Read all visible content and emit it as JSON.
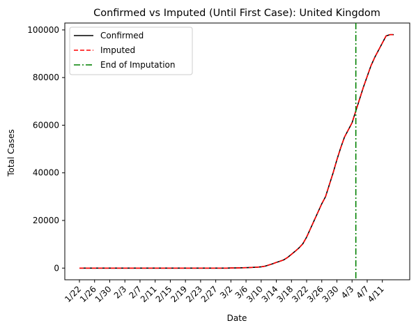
{
  "chart_data": {
    "type": "line",
    "title": "Confirmed vs Imputed (Until First Case): United Kingdom",
    "xlabel": "Date",
    "ylabel": "Total Cases",
    "x": [
      "1/22",
      "1/23",
      "1/24",
      "1/25",
      "1/26",
      "1/27",
      "1/28",
      "1/29",
      "1/30",
      "1/31",
      "2/1",
      "2/2",
      "2/3",
      "2/4",
      "2/5",
      "2/6",
      "2/7",
      "2/8",
      "2/9",
      "2/10",
      "2/11",
      "2/12",
      "2/13",
      "2/14",
      "2/15",
      "2/16",
      "2/17",
      "2/18",
      "2/19",
      "2/20",
      "2/21",
      "2/22",
      "2/23",
      "2/24",
      "2/25",
      "2/26",
      "2/27",
      "2/28",
      "2/29",
      "3/1",
      "3/2",
      "3/3",
      "3/4",
      "3/5",
      "3/6",
      "3/7",
      "3/8",
      "3/9",
      "3/10",
      "3/11",
      "3/12",
      "3/13",
      "3/14",
      "3/15",
      "3/16",
      "3/17",
      "3/18",
      "3/19",
      "3/20",
      "3/21",
      "3/22",
      "3/23",
      "3/24",
      "3/25",
      "3/26",
      "3/27",
      "3/28",
      "3/29",
      "3/30",
      "3/31",
      "4/1",
      "4/2",
      "4/3",
      "4/4",
      "4/5",
      "4/6",
      "4/7",
      "4/8",
      "4/9",
      "4/10",
      "4/11",
      "4/12",
      "4/13",
      "4/14"
    ],
    "xticks": [
      "1/22",
      "1/26",
      "1/30",
      "2/3",
      "2/7",
      "2/11",
      "2/15",
      "2/19",
      "2/23",
      "2/27",
      "3/2",
      "3/6",
      "3/10",
      "3/14",
      "3/18",
      "3/22",
      "3/26",
      "3/30",
      "4/3",
      "4/7",
      "4/11"
    ],
    "ylim": [
      -4900,
      102900
    ],
    "yticks": [
      0,
      20000,
      40000,
      60000,
      80000,
      100000
    ],
    "series": [
      {
        "name": "Confirmed",
        "color": "#000000",
        "style": "solid",
        "values": [
          0,
          0,
          0,
          0,
          0,
          0,
          0,
          0,
          0,
          0,
          0,
          0,
          0,
          0,
          0,
          0,
          0,
          0,
          0,
          0,
          0,
          0,
          0,
          0,
          0,
          0,
          0,
          0,
          0,
          0,
          0,
          0,
          0,
          0,
          0,
          0,
          0,
          0,
          0,
          0,
          50,
          60,
          90,
          120,
          180,
          250,
          320,
          400,
          550,
          800,
          1300,
          1800,
          2400,
          2900,
          3500,
          4500,
          5800,
          7100,
          8500,
          10200,
          13000,
          16500,
          20000,
          23500,
          27000,
          30000,
          35000,
          40000,
          45500,
          50500,
          55000,
          58000,
          61000,
          66000,
          71000,
          76000,
          80500,
          85000,
          88500,
          91500,
          94500,
          97500,
          98000,
          98000
        ]
      },
      {
        "name": "Imputed",
        "color": "#ff0000",
        "style": "dashed",
        "values": [
          0,
          0,
          0,
          0,
          0,
          0,
          0,
          0,
          0,
          0,
          0,
          0,
          0,
          0,
          0,
          0,
          0,
          0,
          0,
          0,
          0,
          0,
          0,
          0,
          0,
          0,
          0,
          0,
          0,
          0,
          0,
          0,
          0,
          0,
          0,
          0,
          0,
          0,
          0,
          0,
          50,
          60,
          90,
          120,
          180,
          250,
          320,
          400,
          550,
          800,
          1300,
          1800,
          2400,
          2900,
          3500,
          4500,
          5800,
          7100,
          8500,
          10200,
          13000,
          16500,
          20000,
          23500,
          27000,
          30000,
          35000,
          40000,
          45500,
          50500,
          55000,
          58000,
          61000,
          66000,
          71000,
          76000,
          80500,
          85000,
          88500,
          91500,
          94500,
          97500,
          98000,
          98000
        ]
      }
    ],
    "vline": {
      "name": "End of Imputation",
      "x": "4/4",
      "color": "#008000",
      "style": "dashdot"
    },
    "legend_position": "top-left",
    "grid": false
  }
}
